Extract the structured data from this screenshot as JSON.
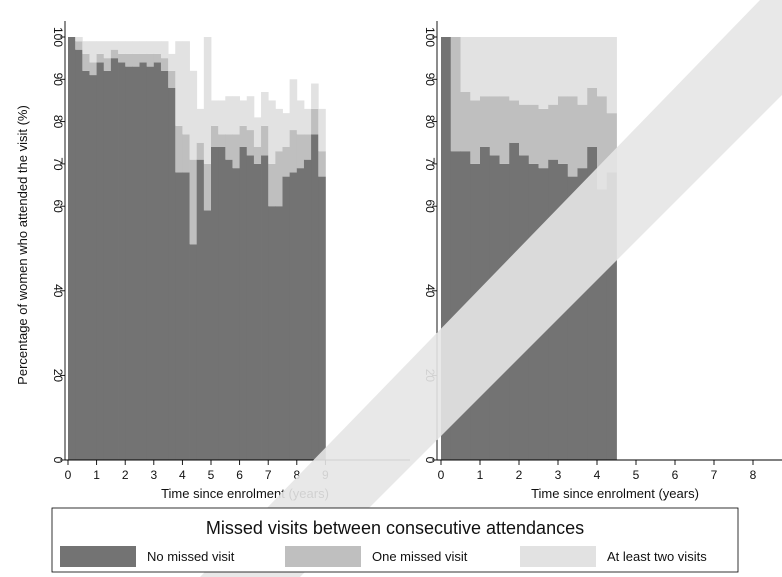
{
  "chart_data": {
    "type": "bar",
    "stacked": true,
    "ylabel": "Percentage of women who attended the visit  (%)",
    "yticks": [
      0,
      20,
      40,
      60,
      70,
      80,
      90,
      100
    ],
    "ylim": [
      0,
      100
    ],
    "grid": false,
    "legend": {
      "title": "Missed visits between consecutive attendances",
      "position": "bottom",
      "items": [
        {
          "label": "No missed visit",
          "color": "#737373"
        },
        {
          "label": "One missed visit",
          "color": "#bfbfbf"
        },
        {
          "label": "At least two visits",
          "color": "#e2e2e2"
        }
      ]
    },
    "panels": [
      {
        "xlabel": "Time since enrolment (years)",
        "xticks": [
          "0",
          "1",
          "2",
          "3",
          "4",
          "5",
          "6",
          "7",
          "8",
          "9"
        ],
        "xlim": [
          0,
          9
        ],
        "x": [
          0.125,
          0.375,
          0.625,
          0.875,
          1.125,
          1.375,
          1.625,
          1.875,
          2.125,
          2.375,
          2.625,
          2.875,
          3.125,
          3.375,
          3.625,
          3.875,
          4.125,
          4.375,
          4.625,
          4.875,
          5.125,
          5.375,
          5.625,
          5.875,
          6.125,
          6.375,
          6.625,
          6.875,
          7.125,
          7.375,
          7.625,
          7.875,
          8.125,
          8.375,
          8.625,
          8.875
        ],
        "series": [
          {
            "name": "No missed visit",
            "values": [
              100,
              97,
              92,
              91,
              94,
              92,
              95,
              94,
              93,
              93,
              94,
              93,
              94,
              92,
              88,
              68,
              68,
              51,
              71,
              59,
              74,
              74,
              71,
              69,
              74,
              72,
              70,
              72,
              60,
              60,
              67,
              68,
              69,
              71,
              77,
              67
            ]
          },
          {
            "name": "One missed visit",
            "values": [
              0,
              2,
              4,
              3,
              2,
              3,
              2,
              2,
              3,
              3,
              2,
              3,
              2,
              3,
              4,
              11,
              9,
              20,
              4,
              11,
              5,
              3,
              6,
              8,
              5,
              6,
              4,
              7,
              10,
              13,
              7,
              10,
              8,
              6,
              6,
              6
            ]
          },
          {
            "name": "At least two visits",
            "values": [
              0,
              1,
              3,
              5,
              3,
              4,
              2,
              3,
              3,
              3,
              3,
              3,
              3,
              4,
              4,
              20,
              22,
              21,
              8,
              30,
              6,
              8,
              9,
              9,
              6,
              8,
              7,
              8,
              15,
              10,
              8,
              12,
              8,
              6,
              6,
              10
            ]
          }
        ]
      },
      {
        "xlabel": "Time since enrolment (years)",
        "xticks": [
          "0",
          "1",
          "2",
          "3",
          "4",
          "5",
          "6",
          "7",
          "8"
        ],
        "xlim": [
          0,
          8
        ],
        "x": [
          0.125,
          0.375,
          0.625,
          0.875,
          1.125,
          1.375,
          1.625,
          1.875,
          2.125,
          2.375,
          2.625,
          2.875,
          3.125,
          3.375,
          3.625,
          3.875,
          4.125,
          4.375
        ],
        "series": [
          {
            "name": "No missed visit",
            "values": [
              100,
              73,
              73,
              70,
              74,
              72,
              70,
              75,
              72,
              70,
              69,
              71,
              70,
              67,
              69,
              74,
              64,
              68
            ]
          },
          {
            "name": "One missed visit",
            "values": [
              0,
              27,
              14,
              15,
              12,
              14,
              16,
              10,
              12,
              14,
              14,
              13,
              16,
              19,
              15,
              14,
              22,
              14
            ]
          },
          {
            "name": "At least two visits",
            "values": [
              0,
              0,
              13,
              15,
              14,
              14,
              14,
              15,
              16,
              16,
              17,
              16,
              14,
              14,
              16,
              12,
              14,
              18
            ]
          }
        ]
      }
    ]
  }
}
